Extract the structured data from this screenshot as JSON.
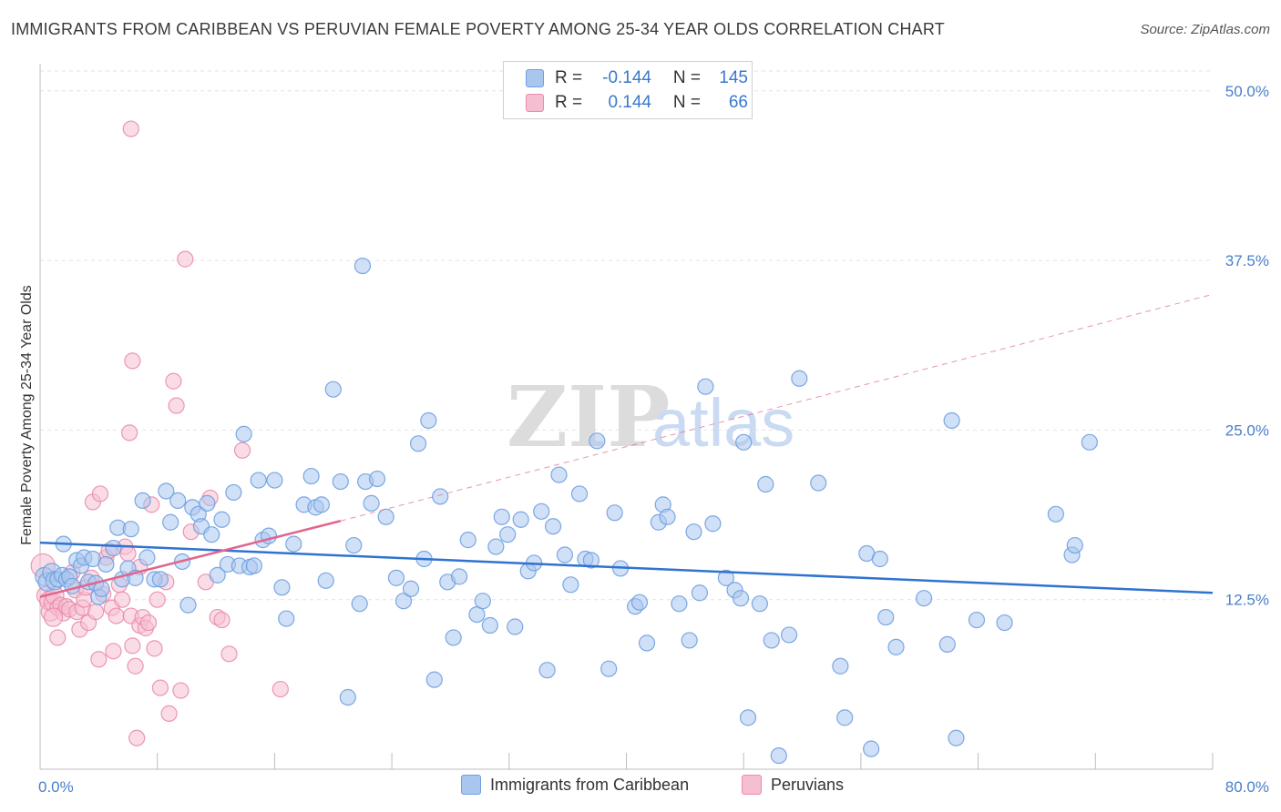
{
  "title": "IMMIGRANTS FROM CARIBBEAN VS PERUVIAN FEMALE POVERTY AMONG 25-34 YEAR OLDS CORRELATION CHART",
  "source": "Source: ZipAtlas.com",
  "watermark": {
    "zip": "ZIP",
    "atlas": "atlas"
  },
  "legend": {
    "rows": [
      {
        "r_label": "R =",
        "r_value": "-0.144",
        "n_label": "N =",
        "n_value": "145"
      },
      {
        "r_label": "R =",
        "r_value": "0.144",
        "n_label": "N =",
        "n_value": "66"
      }
    ]
  },
  "bottom_legend": [
    {
      "label": "Immigrants from Caribbean"
    },
    {
      "label": "Peruvians"
    }
  ],
  "chart_data": {
    "type": "scatter",
    "title": "IMMIGRANTS FROM CARIBBEAN VS PERUVIAN FEMALE POVERTY AMONG 25-34 YEAR OLDS CORRELATION CHART",
    "xlabel": "",
    "ylabel": "Female Poverty Among 25-34 Year Olds",
    "xlim": [
      0,
      80
    ],
    "ylim": [
      0,
      52
    ],
    "x_tick_labels": [
      {
        "value": 0,
        "label": "0.0%"
      },
      {
        "value": 80,
        "label": "80.0%"
      }
    ],
    "y_tick_labels": [
      {
        "value": 12.5,
        "label": "12.5%"
      },
      {
        "value": 25,
        "label": "25.0%"
      },
      {
        "value": 37.5,
        "label": "37.5%"
      },
      {
        "value": 50,
        "label": "50.0%"
      }
    ],
    "x_gridlines": [
      0,
      8,
      16,
      24,
      32,
      40,
      48,
      56,
      64,
      72,
      80
    ],
    "grid": true,
    "legend_position": "top-center",
    "series": [
      {
        "name": "Immigrants from Caribbean",
        "color": "#6f9fe0",
        "fill": "#a9c6ef",
        "trend": {
          "x": [
            0,
            80
          ],
          "y": [
            16.7,
            13.0
          ],
          "style": "solid",
          "color": "#2f73d1"
        },
        "points": [
          [
            0.3,
            14.2
          ],
          [
            0.5,
            13.8
          ],
          [
            0.8,
            14.5
          ],
          [
            1.0,
            13.9
          ],
          [
            1.2,
            14.0
          ],
          [
            1.5,
            14.3
          ],
          [
            1.6,
            16.6
          ],
          [
            1.8,
            14.0
          ],
          [
            2.0,
            14.2
          ],
          [
            2.2,
            13.5
          ],
          [
            2.5,
            15.4
          ],
          [
            2.8,
            15.0
          ],
          [
            3.0,
            15.6
          ],
          [
            3.3,
            13.8
          ],
          [
            3.6,
            15.5
          ],
          [
            3.8,
            13.7
          ],
          [
            4.0,
            12.7
          ],
          [
            4.2,
            13.3
          ],
          [
            4.5,
            15.1
          ],
          [
            5.0,
            16.3
          ],
          [
            5.3,
            17.8
          ],
          [
            5.6,
            14.0
          ],
          [
            6.0,
            14.8
          ],
          [
            6.5,
            14.1
          ],
          [
            7.0,
            19.8
          ],
          [
            7.3,
            15.6
          ],
          [
            7.8,
            14.0
          ],
          [
            8.6,
            20.5
          ],
          [
            8.9,
            18.2
          ],
          [
            9.4,
            19.8
          ],
          [
            9.7,
            15.3
          ],
          [
            10.1,
            12.1
          ],
          [
            10.4,
            19.3
          ],
          [
            10.8,
            18.8
          ],
          [
            11.0,
            17.9
          ],
          [
            11.4,
            19.6
          ],
          [
            11.7,
            17.3
          ],
          [
            12.1,
            14.3
          ],
          [
            12.4,
            18.4
          ],
          [
            12.8,
            15.1
          ],
          [
            13.2,
            20.4
          ],
          [
            13.6,
            15.0
          ],
          [
            13.9,
            24.7
          ],
          [
            14.3,
            14.9
          ],
          [
            14.6,
            15.0
          ],
          [
            14.9,
            21.3
          ],
          [
            15.2,
            16.9
          ],
          [
            15.6,
            17.2
          ],
          [
            16.0,
            21.3
          ],
          [
            16.5,
            13.4
          ],
          [
            16.8,
            11.1
          ],
          [
            17.3,
            16.6
          ],
          [
            18.0,
            19.5
          ],
          [
            18.5,
            21.6
          ],
          [
            18.8,
            19.3
          ],
          [
            19.2,
            19.5
          ],
          [
            19.5,
            13.9
          ],
          [
            20.0,
            28.0
          ],
          [
            20.5,
            21.2
          ],
          [
            21.0,
            5.3
          ],
          [
            21.4,
            16.5
          ],
          [
            21.8,
            12.2
          ],
          [
            22.2,
            21.2
          ],
          [
            22.6,
            19.6
          ],
          [
            23.0,
            21.4
          ],
          [
            23.6,
            18.6
          ],
          [
            24.3,
            14.1
          ],
          [
            24.8,
            12.4
          ],
          [
            25.3,
            13.3
          ],
          [
            22.0,
            37.1
          ],
          [
            25.8,
            24.0
          ],
          [
            26.2,
            15.5
          ],
          [
            26.5,
            25.7
          ],
          [
            26.9,
            6.6
          ],
          [
            27.3,
            20.1
          ],
          [
            27.8,
            13.8
          ],
          [
            28.2,
            9.7
          ],
          [
            28.6,
            14.2
          ],
          [
            29.2,
            16.9
          ],
          [
            29.8,
            11.4
          ],
          [
            30.2,
            12.4
          ],
          [
            30.7,
            10.6
          ],
          [
            31.1,
            16.4
          ],
          [
            31.5,
            18.6
          ],
          [
            31.9,
            17.3
          ],
          [
            32.4,
            10.5
          ],
          [
            32.8,
            18.4
          ],
          [
            33.3,
            14.6
          ],
          [
            33.7,
            15.2
          ],
          [
            34.2,
            19.0
          ],
          [
            34.6,
            7.3
          ],
          [
            35.0,
            17.9
          ],
          [
            35.4,
            21.7
          ],
          [
            35.8,
            15.8
          ],
          [
            36.2,
            13.6
          ],
          [
            36.8,
            20.3
          ],
          [
            37.2,
            15.5
          ],
          [
            37.6,
            15.4
          ],
          [
            38.0,
            24.2
          ],
          [
            38.8,
            7.4
          ],
          [
            39.2,
            18.9
          ],
          [
            39.6,
            14.8
          ],
          [
            40.6,
            12.0
          ],
          [
            40.9,
            12.3
          ],
          [
            41.4,
            9.3
          ],
          [
            42.2,
            18.2
          ],
          [
            42.5,
            19.5
          ],
          [
            42.8,
            18.6
          ],
          [
            43.6,
            12.2
          ],
          [
            44.3,
            9.5
          ],
          [
            44.6,
            17.5
          ],
          [
            45.0,
            13.0
          ],
          [
            45.4,
            28.2
          ],
          [
            45.9,
            18.1
          ],
          [
            46.8,
            14.1
          ],
          [
            47.4,
            13.2
          ],
          [
            47.8,
            12.6
          ],
          [
            48.0,
            24.1
          ],
          [
            48.3,
            3.8
          ],
          [
            49.1,
            12.2
          ],
          [
            49.5,
            21.0
          ],
          [
            49.9,
            9.5
          ],
          [
            50.4,
            1.0
          ],
          [
            51.1,
            9.9
          ],
          [
            51.8,
            28.8
          ],
          [
            53.1,
            21.1
          ],
          [
            54.6,
            7.6
          ],
          [
            54.9,
            3.8
          ],
          [
            56.4,
            15.9
          ],
          [
            56.7,
            1.5
          ],
          [
            57.3,
            15.5
          ],
          [
            57.7,
            11.2
          ],
          [
            58.4,
            9.0
          ],
          [
            60.3,
            12.6
          ],
          [
            61.9,
            9.2
          ],
          [
            62.2,
            25.7
          ],
          [
            62.5,
            2.3
          ],
          [
            63.9,
            11.0
          ],
          [
            65.8,
            10.8
          ],
          [
            69.3,
            18.8
          ],
          [
            70.4,
            15.8
          ],
          [
            71.6,
            24.1
          ],
          [
            70.6,
            16.5
          ],
          [
            8.2,
            14.0
          ],
          [
            6.2,
            17.7
          ]
        ]
      },
      {
        "name": "Peruvians",
        "color": "#ea8cab",
        "fill": "#f5bfd1",
        "trend": {
          "x": [
            0,
            20.5
          ],
          "y": [
            12.7,
            18.3
          ],
          "style": "solid",
          "color": "#e0668f",
          "dashed_extension": {
            "x": [
              20.5,
              80
            ],
            "y": [
              18.3,
              35.0
            ]
          }
        },
        "points": [
          [
            0.2,
            15.0
          ],
          [
            0.4,
            12.8
          ],
          [
            0.6,
            12.4
          ],
          [
            0.7,
            11.6
          ],
          [
            0.9,
            12.3
          ],
          [
            1.0,
            12.8
          ],
          [
            1.2,
            11.9
          ],
          [
            1.4,
            12.1
          ],
          [
            1.6,
            11.5
          ],
          [
            1.8,
            12.0
          ],
          [
            2.0,
            11.8
          ],
          [
            2.2,
            14.5
          ],
          [
            2.4,
            13.2
          ],
          [
            2.5,
            11.6
          ],
          [
            2.7,
            10.3
          ],
          [
            2.9,
            11.9
          ],
          [
            3.0,
            12.5
          ],
          [
            3.1,
            13.4
          ],
          [
            3.3,
            10.8
          ],
          [
            3.5,
            14.1
          ],
          [
            3.6,
            19.7
          ],
          [
            3.8,
            11.6
          ],
          [
            4.0,
            8.1
          ],
          [
            4.1,
            20.3
          ],
          [
            4.3,
            12.9
          ],
          [
            4.5,
            15.6
          ],
          [
            4.7,
            16.1
          ],
          [
            4.9,
            11.9
          ],
          [
            5.0,
            8.7
          ],
          [
            5.2,
            11.3
          ],
          [
            5.4,
            13.6
          ],
          [
            5.6,
            12.5
          ],
          [
            5.8,
            16.4
          ],
          [
            6.0,
            15.9
          ],
          [
            6.2,
            11.3
          ],
          [
            6.3,
            9.1
          ],
          [
            6.5,
            7.6
          ],
          [
            6.8,
            14.9
          ],
          [
            6.1,
            24.8
          ],
          [
            6.3,
            30.1
          ],
          [
            6.6,
            2.3
          ],
          [
            6.8,
            10.6
          ],
          [
            7.0,
            11.2
          ],
          [
            7.2,
            10.4
          ],
          [
            7.4,
            10.8
          ],
          [
            7.6,
            19.5
          ],
          [
            7.8,
            8.9
          ],
          [
            8.0,
            12.5
          ],
          [
            8.2,
            6.0
          ],
          [
            8.6,
            13.8
          ],
          [
            8.8,
            4.1
          ],
          [
            9.1,
            28.6
          ],
          [
            9.3,
            26.8
          ],
          [
            9.6,
            5.8
          ],
          [
            9.9,
            37.6
          ],
          [
            10.3,
            17.5
          ],
          [
            11.3,
            13.8
          ],
          [
            11.6,
            20.0
          ],
          [
            12.1,
            11.2
          ],
          [
            12.4,
            11.0
          ],
          [
            12.9,
            8.5
          ],
          [
            13.8,
            23.5
          ],
          [
            16.4,
            5.9
          ],
          [
            6.2,
            47.2
          ],
          [
            1.2,
            9.7
          ],
          [
            0.9,
            11.2
          ]
        ]
      }
    ]
  }
}
